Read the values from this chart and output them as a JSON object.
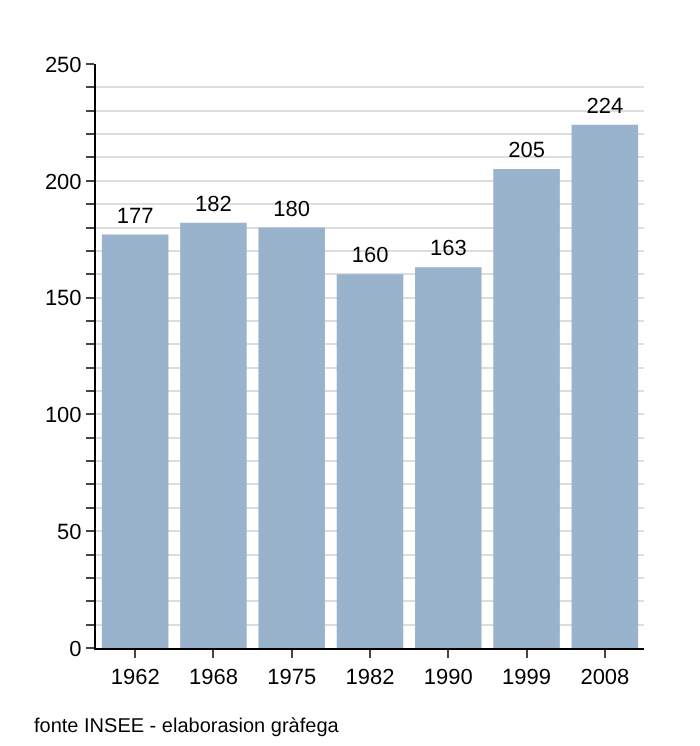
{
  "chart_data": {
    "type": "bar",
    "categories": [
      "1962",
      "1968",
      "1975",
      "1982",
      "1990",
      "1999",
      "2008"
    ],
    "values": [
      177,
      182,
      180,
      160,
      163,
      205,
      224
    ],
    "color": "#9ab3cc",
    "ylim": [
      0,
      250
    ],
    "yticks": [
      0,
      {
        "value": 10,
        "label": null
      },
      {
        "value": 20,
        "label": null
      },
      {
        "value": 30,
        "label": null
      },
      {
        "value": 40,
        "label": null
      },
      50,
      {
        "value": 60,
        "label": null
      },
      {
        "value": 70,
        "label": null
      },
      {
        "value": 80,
        "label": null
      },
      {
        "value": 90,
        "label": null
      },
      100,
      {
        "value": 110,
        "label": null
      },
      {
        "value": 120,
        "label": null
      },
      {
        "value": 130,
        "label": null
      },
      {
        "value": 140,
        "label": null
      },
      150,
      {
        "value": 160,
        "label": null
      },
      {
        "value": 170,
        "label": null
      },
      {
        "value": 180,
        "label": null
      },
      {
        "value": 190,
        "label": null
      },
      200,
      {
        "value": 210,
        "label": null
      },
      {
        "value": 220,
        "label": null
      },
      {
        "value": 230,
        "label": null
      },
      {
        "value": 240,
        "label": null
      },
      250
    ],
    "grid": "y",
    "data_labels": true,
    "annotations": [
      "fonte INSEE - elaborasion gràfega"
    ]
  }
}
